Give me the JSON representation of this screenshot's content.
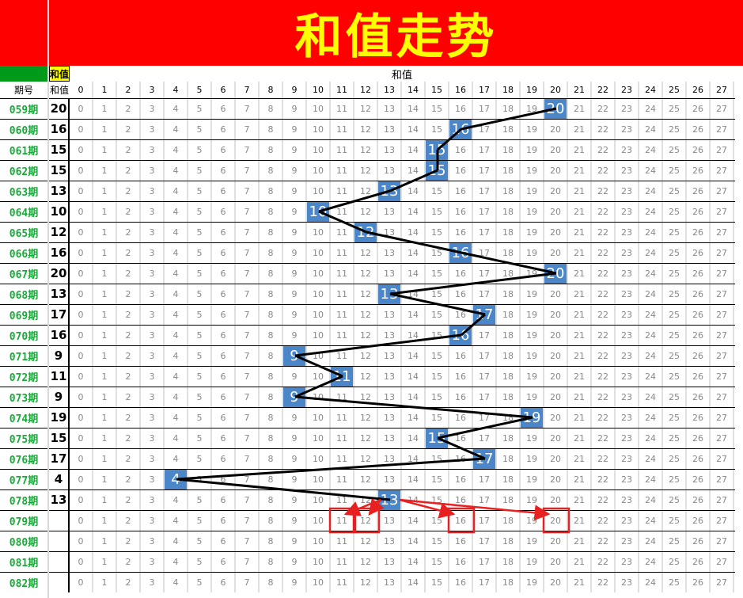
{
  "title": "和值走势",
  "group_header": "和值",
  "sum_tag": "和值",
  "col_period": "期号",
  "col_sum": "和值",
  "numbers": [
    0,
    1,
    2,
    3,
    4,
    5,
    6,
    7,
    8,
    9,
    10,
    11,
    12,
    13,
    14,
    15,
    16,
    17,
    18,
    19,
    20,
    21,
    22,
    23,
    24,
    25,
    26,
    27
  ],
  "colors": {
    "banner": "#ff0000",
    "title": "#ffff00",
    "hit": "#4a86c8",
    "period": "#1aaa3a",
    "prediction": "#e82020"
  },
  "chart_data": {
    "type": "line",
    "periods": [
      "059期",
      "060期",
      "061期",
      "062期",
      "063期",
      "064期",
      "065期",
      "066期",
      "067期",
      "068期",
      "069期",
      "070期",
      "071期",
      "072期",
      "073期",
      "074期",
      "075期",
      "076期",
      "077期",
      "078期",
      "079期",
      "080期",
      "081期",
      "082期"
    ],
    "values": [
      20,
      16,
      15,
      15,
      13,
      10,
      12,
      16,
      20,
      13,
      17,
      16,
      9,
      11,
      9,
      19,
      15,
      17,
      4,
      13,
      null,
      null,
      null,
      null
    ],
    "prediction": {
      "period": "079期",
      "from": 13,
      "targets": [
        11,
        12,
        16,
        20
      ]
    }
  }
}
